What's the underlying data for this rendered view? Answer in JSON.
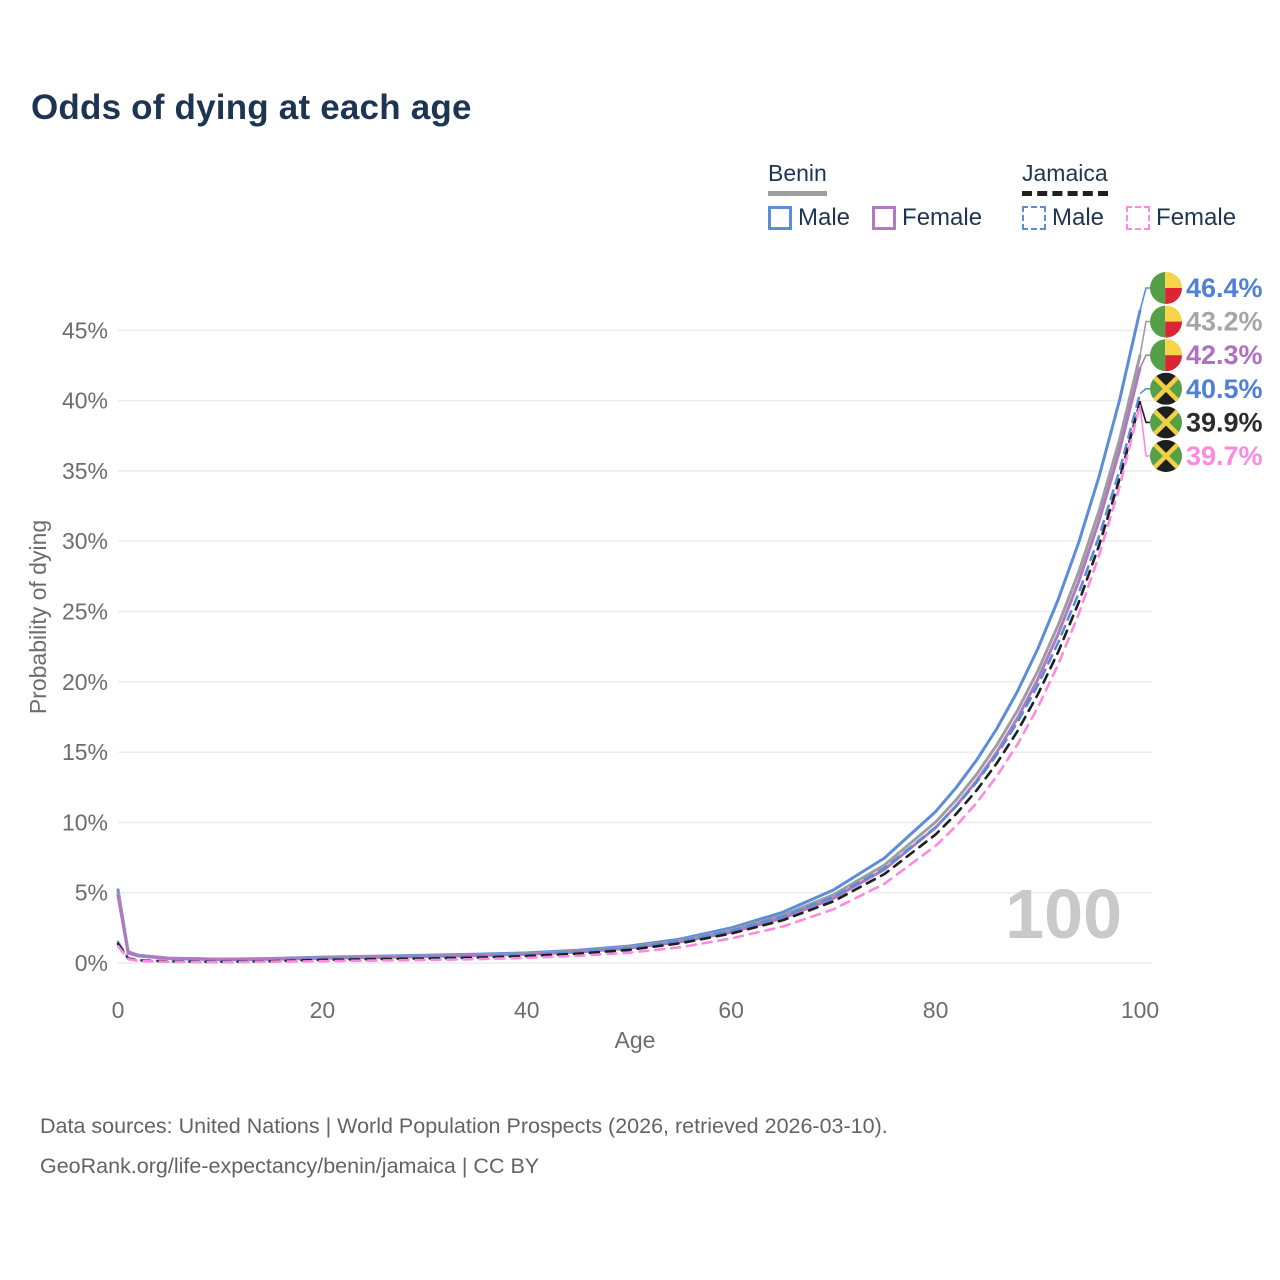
{
  "title": "Odds of dying at each age",
  "legend": {
    "groups": [
      {
        "name": "Benin",
        "swatch_color": "#9e9e9e",
        "swatch_style": "solid",
        "items": [
          {
            "label": "Male",
            "color": "#5b8dd9",
            "style": "solid"
          },
          {
            "label": "Female",
            "color": "#b279c2",
            "style": "solid"
          }
        ]
      },
      {
        "name": "Jamaica",
        "swatch_color": "#1f1f1f",
        "swatch_style": "dashed",
        "items": [
          {
            "label": "Male",
            "color": "#5b8dd9",
            "style": "dashed"
          },
          {
            "label": "Female",
            "color": "#fb8ae0",
            "style": "dashed"
          }
        ]
      }
    ]
  },
  "chart_data": {
    "type": "line",
    "title": "Odds of dying at each age",
    "xlabel": "Age",
    "ylabel": "Probability of dying",
    "xlim": [
      0,
      100
    ],
    "ylim": [
      0,
      48
    ],
    "x_ticks": [
      0,
      20,
      40,
      60,
      80,
      100
    ],
    "y_ticks": [
      0,
      5,
      10,
      15,
      20,
      25,
      30,
      35,
      40,
      45
    ],
    "y_tick_suffix": "%",
    "grid": "horizontal",
    "watermark": "100",
    "x": [
      0,
      1,
      2,
      5,
      10,
      15,
      20,
      25,
      30,
      35,
      40,
      45,
      50,
      55,
      60,
      65,
      70,
      75,
      80,
      82,
      84,
      86,
      88,
      90,
      92,
      94,
      96,
      98,
      100
    ],
    "series": [
      {
        "name": "Benin Male",
        "country": "benin",
        "sex": "male",
        "color": "#5b8dd9",
        "dash": "solid",
        "end_label": "46.4%",
        "label_color": "#4f81d6",
        "values": [
          5.2,
          0.8,
          0.55,
          0.35,
          0.28,
          0.32,
          0.42,
          0.48,
          0.55,
          0.62,
          0.72,
          0.9,
          1.2,
          1.7,
          2.5,
          3.6,
          5.19,
          7.47,
          10.77,
          12.46,
          14.42,
          16.68,
          19.31,
          22.34,
          25.85,
          29.91,
          34.61,
          40.04,
          46.4
        ]
      },
      {
        "name": "Benin",
        "country": "benin",
        "sex": "total",
        "color": "#9e9e9e",
        "dash": "solid",
        "end_label": "43.2%",
        "label_color": "#a6a6a6",
        "values": [
          5.0,
          0.75,
          0.52,
          0.33,
          0.26,
          0.3,
          0.38,
          0.44,
          0.5,
          0.57,
          0.67,
          0.84,
          1.12,
          1.6,
          2.35,
          3.38,
          4.85,
          6.97,
          10.02,
          11.59,
          13.41,
          15.52,
          17.95,
          20.77,
          24.03,
          27.8,
          32.17,
          37.22,
          43.2
        ]
      },
      {
        "name": "Benin Female",
        "country": "benin",
        "sex": "female",
        "color": "#b279c2",
        "dash": "solid",
        "end_label": "42.3%",
        "label_color": "#b06fc1",
        "values": [
          4.8,
          0.7,
          0.5,
          0.31,
          0.24,
          0.27,
          0.34,
          0.4,
          0.46,
          0.53,
          0.62,
          0.78,
          1.05,
          1.5,
          2.2,
          3.18,
          4.6,
          6.66,
          9.63,
          11.17,
          12.95,
          15.01,
          17.41,
          20.18,
          23.4,
          27.13,
          31.45,
          36.46,
          42.3
        ]
      },
      {
        "name": "Jamaica Male",
        "country": "jamaica",
        "sex": "male",
        "color": "#5b8dd9",
        "dash": "dashed",
        "end_label": "40.5%",
        "label_color": "#4f81d6",
        "values": [
          1.5,
          0.35,
          0.2,
          0.12,
          0.1,
          0.15,
          0.28,
          0.33,
          0.38,
          0.46,
          0.58,
          0.78,
          1.08,
          1.58,
          2.3,
          3.29,
          4.71,
          6.74,
          9.65,
          11.13,
          12.85,
          14.83,
          17.11,
          19.75,
          22.79,
          26.3,
          30.35,
          35.03,
          40.5
        ]
      },
      {
        "name": "Jamaica",
        "country": "jamaica",
        "sex": "total",
        "color": "#1f1f1f",
        "dash": "dashed",
        "end_label": "39.9%",
        "label_color": "#2b2b2b",
        "values": [
          1.35,
          0.3,
          0.18,
          0.1,
          0.08,
          0.12,
          0.22,
          0.27,
          0.31,
          0.38,
          0.49,
          0.66,
          0.93,
          1.4,
          2.1,
          3.03,
          4.38,
          6.33,
          9.14,
          10.59,
          12.27,
          14.22,
          16.48,
          19.1,
          22.13,
          25.64,
          29.71,
          34.43,
          39.9
        ]
      },
      {
        "name": "Jamaica Female",
        "country": "jamaica",
        "sex": "female",
        "color": "#fb8ae0",
        "dash": "dashed",
        "end_label": "39.7%",
        "label_color": "#fb8ae0",
        "values": [
          1.2,
          0.28,
          0.15,
          0.08,
          0.06,
          0.09,
          0.13,
          0.17,
          0.21,
          0.27,
          0.36,
          0.51,
          0.73,
          1.12,
          1.75,
          2.58,
          3.82,
          5.64,
          8.33,
          9.74,
          11.38,
          13.3,
          15.54,
          18.17,
          21.23,
          24.81,
          29.0,
          33.89,
          39.7
        ]
      }
    ],
    "flag_colors": {
      "benin": {
        "green": "#55a046",
        "yellow": "#f7d448",
        "red": "#dc2435"
      },
      "jamaica": {
        "green": "#55a046",
        "yellow": "#f3cf45",
        "black": "#1f1f1f"
      }
    }
  },
  "footer": {
    "line1": "Data sources: United Nations | World Population Prospects (2026, retrieved 2026-03-10).",
    "line2": "GeoRank.org/life-expectancy/benin/jamaica | CC BY"
  }
}
